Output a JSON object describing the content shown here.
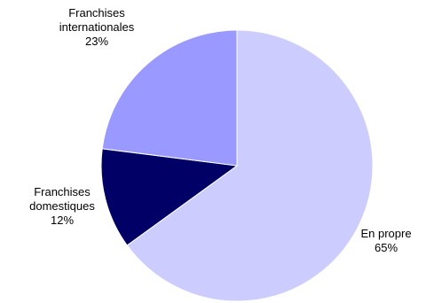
{
  "chart_data": {
    "type": "pie",
    "start": "12 o'clock",
    "direction": "clockwise",
    "slices": [
      {
        "label_lines": [
          "En propre"
        ],
        "value": 65,
        "value_text": "65%",
        "color": "#ccccff"
      },
      {
        "label_lines": [
          "Franchises",
          "domestiques"
        ],
        "value": 12,
        "value_text": "12%",
        "color": "#000066"
      },
      {
        "label_lines": [
          "Franchises",
          "internationales"
        ],
        "value": 23,
        "value_text": "23%",
        "color": "#9999ff"
      }
    ]
  }
}
